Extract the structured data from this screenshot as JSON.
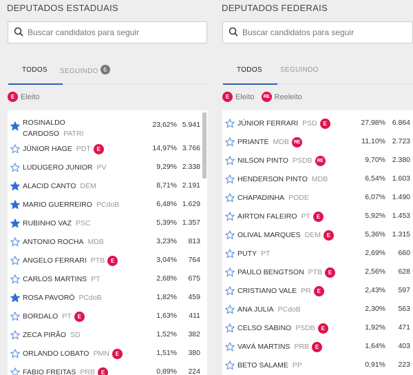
{
  "left": {
    "title": "DEPUTADOS ESTADUAIS",
    "search_placeholder": "Buscar candidatos para seguir",
    "tabs": [
      {
        "label": "TODOS"
      },
      {
        "label": "SEGUINDO",
        "count": "6"
      }
    ],
    "legend": [
      {
        "badge": "E",
        "label": "Eleito"
      }
    ],
    "rows": [
      {
        "name": "ROSINALDO",
        "name2": "CARDOSO",
        "party": "PATRI",
        "pct": "23,62%",
        "votes": "5.941",
        "followed": true,
        "badge": ""
      },
      {
        "name": "JÚNIOR HAGE",
        "party": "PDT",
        "pct": "14,97%",
        "votes": "3.766",
        "followed": false,
        "badge": "E"
      },
      {
        "name": "LUDUGERO JUNIOR",
        "party": "PV",
        "pct": "9,29%",
        "votes": "2.338",
        "followed": false,
        "badge": ""
      },
      {
        "name": "ALACID CANTO",
        "party": "DEM",
        "pct": "8,71%",
        "votes": "2.191",
        "followed": true,
        "badge": ""
      },
      {
        "name": "MARIO GUERREIRO",
        "party": "PCdoB",
        "pct": "6,48%",
        "votes": "1.629",
        "followed": true,
        "badge": ""
      },
      {
        "name": "RUBINHO VAZ",
        "party": "PSC",
        "pct": "5,39%",
        "votes": "1.357",
        "followed": true,
        "badge": ""
      },
      {
        "name": "ANTONIO ROCHA",
        "party": "MDB",
        "pct": "3,23%",
        "votes": "813",
        "followed": false,
        "badge": ""
      },
      {
        "name": "ANGELO FERRARI",
        "party": "PTB",
        "pct": "3,04%",
        "votes": "764",
        "followed": false,
        "badge": "E"
      },
      {
        "name": "CARLOS MARTINS",
        "party": "PT",
        "pct": "2,68%",
        "votes": "675",
        "followed": false,
        "badge": ""
      },
      {
        "name": "ROSA PAVORÓ",
        "party": "PCdoB",
        "pct": "1,82%",
        "votes": "459",
        "followed": true,
        "badge": ""
      },
      {
        "name": "BORDALO",
        "party": "PT",
        "pct": "1,63%",
        "votes": "411",
        "followed": false,
        "badge": "E"
      },
      {
        "name": "ZECA PIRÃO",
        "party": "SD",
        "pct": "1,52%",
        "votes": "382",
        "followed": false,
        "badge": ""
      },
      {
        "name": "ORLANDO LOBATO",
        "party": "PMN",
        "pct": "1,51%",
        "votes": "380",
        "followed": false,
        "badge": "E"
      },
      {
        "name": "FABIO FREITAS",
        "party": "PRB",
        "pct": "0,89%",
        "votes": "224",
        "followed": false,
        "badge": "E"
      }
    ]
  },
  "right": {
    "title": "DEPUTADOS FEDERAIS",
    "search_placeholder": "Buscar candidatos para seguir",
    "tabs": [
      {
        "label": "TODOS"
      },
      {
        "label": "SEGUINDO"
      }
    ],
    "legend": [
      {
        "badge": "E",
        "label": "Eleito"
      },
      {
        "badge": "RE",
        "label": "Reeleito"
      }
    ],
    "rows": [
      {
        "name": "JÚNIOR FERRARI",
        "party": "PSD",
        "pct": "27,98%",
        "votes": "6.864",
        "followed": false,
        "badge": "E"
      },
      {
        "name": "PRIANTE",
        "party": "MDB",
        "pct": "11,10%",
        "votes": "2.723",
        "followed": false,
        "badge": "RE"
      },
      {
        "name": "NILSON PINTO",
        "party": "PSDB",
        "pct": "9,70%",
        "votes": "2.380",
        "followed": false,
        "badge": "RE"
      },
      {
        "name": "HENDERSON PINTO",
        "party": "MDB",
        "pct": "6,54%",
        "votes": "1.603",
        "followed": false,
        "badge": ""
      },
      {
        "name": "CHAPADINHA",
        "party": "PODE",
        "pct": "6,07%",
        "votes": "1.490",
        "followed": false,
        "badge": ""
      },
      {
        "name": "AIRTON FALEIRO",
        "party": "PT",
        "pct": "5,92%",
        "votes": "1.453",
        "followed": false,
        "badge": "E"
      },
      {
        "name": "OLIVAL MARQUES",
        "party": "DEM",
        "pct": "5,36%",
        "votes": "1.315",
        "followed": false,
        "badge": "E"
      },
      {
        "name": "PUTY",
        "party": "PT",
        "pct": "2,69%",
        "votes": "660",
        "followed": false,
        "badge": ""
      },
      {
        "name": "PAULO BENGTSON",
        "party": "PTB",
        "pct": "2,56%",
        "votes": "628",
        "followed": false,
        "badge": "E"
      },
      {
        "name": "CRISTIANO VALE",
        "party": "PR",
        "pct": "2,43%",
        "votes": "597",
        "followed": false,
        "badge": "E"
      },
      {
        "name": "ANA JULIA",
        "party": "PCdoB",
        "pct": "2,30%",
        "votes": "563",
        "followed": false,
        "badge": ""
      },
      {
        "name": "CELSO SABINO",
        "party": "PSDB",
        "pct": "1,92%",
        "votes": "471",
        "followed": false,
        "badge": "E"
      },
      {
        "name": "VAVÁ MARTINS",
        "party": "PRB",
        "pct": "1,64%",
        "votes": "403",
        "followed": false,
        "badge": "E"
      },
      {
        "name": "BETO SALAME",
        "party": "PP",
        "pct": "0,91%",
        "votes": "223",
        "followed": false,
        "badge": ""
      }
    ]
  },
  "colors": {
    "star_filled": "#2e6fd6",
    "star_outline": "#5b8fd9",
    "badge": "#e0134f",
    "tab_underline": "#2e5cb8"
  }
}
